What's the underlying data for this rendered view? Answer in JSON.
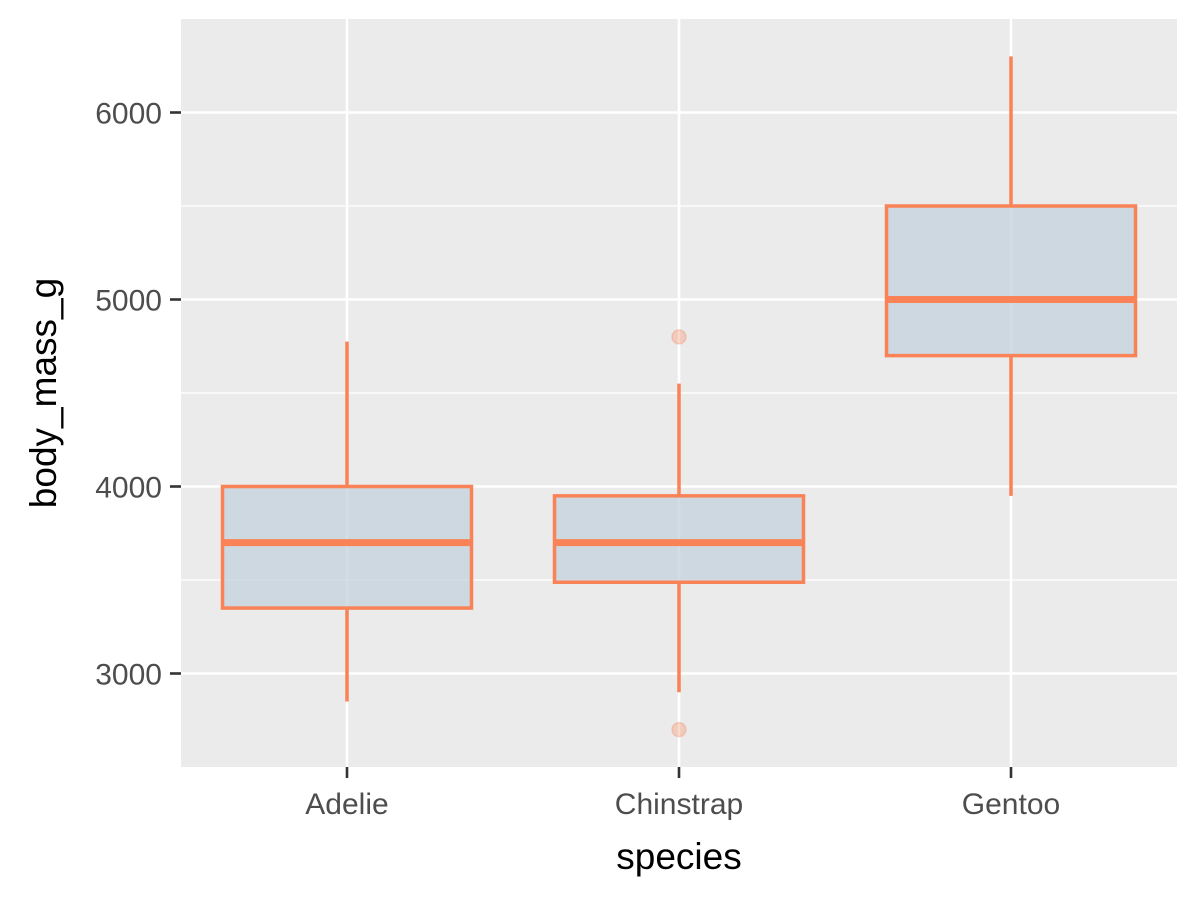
{
  "chart_data": {
    "type": "boxplot",
    "xlabel": "species",
    "ylabel": "body_mass_g",
    "ylim": [
      2500,
      6500
    ],
    "y_ticks": [
      3000,
      4000,
      5000,
      6000
    ],
    "y_tick_labels": [
      "3000",
      "4000",
      "5000",
      "6000"
    ],
    "y_minor_ticks": [
      3500,
      4500,
      5500
    ],
    "categories": [
      "Adelie",
      "Chinstrap",
      "Gentoo"
    ],
    "boxes": [
      {
        "category": "Adelie",
        "whisker_low": 2850,
        "q1": 3350,
        "median": 3700,
        "q3": 4000,
        "whisker_high": 4775,
        "outliers": []
      },
      {
        "category": "Chinstrap",
        "whisker_low": 2900,
        "q1": 3488,
        "median": 3700,
        "q3": 3950,
        "whisker_high": 4550,
        "outliers": [
          2700,
          4800
        ]
      },
      {
        "category": "Gentoo",
        "whisker_low": 3950,
        "q1": 4700,
        "median": 5000,
        "q3": 5500,
        "whisker_high": 6300,
        "outliers": []
      }
    ],
    "grid": true,
    "colors": {
      "panel_background": "#ebebeb",
      "grid": "#ffffff",
      "box_fill": "#c4d1de",
      "box_line": "#f98256"
    }
  }
}
